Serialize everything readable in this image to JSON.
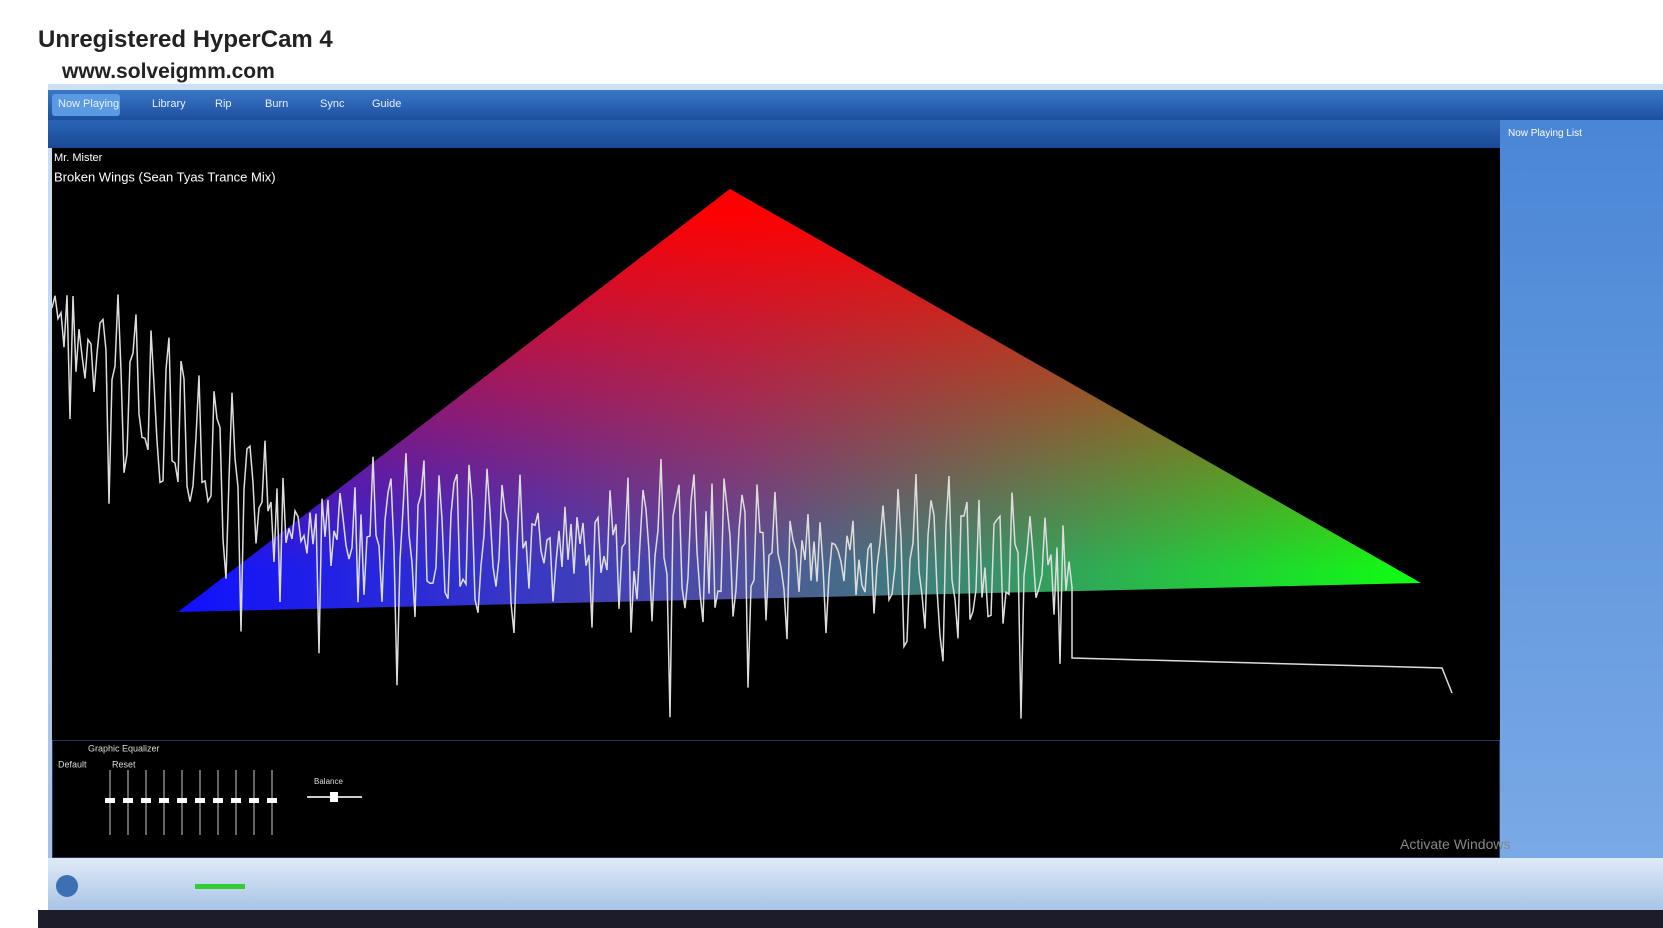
{
  "overlay": {
    "title": "Unregistered HyperCam 4",
    "url": "www.solveigmm.com"
  },
  "player": {
    "tabs": [
      "Now Playing",
      "Library",
      "Rip",
      "Burn",
      "Sync",
      "Guide"
    ],
    "artist": "Mr. Mister",
    "track": "Broken Wings (Sean Tyas Trance Mix)",
    "side_panel": {
      "title": "Now Playing List"
    },
    "equalizer": {
      "title": "Graphic Equalizer",
      "preset": "Default",
      "reset": "Reset",
      "balance": "Balance"
    },
    "watermark": "Activate Windows"
  }
}
